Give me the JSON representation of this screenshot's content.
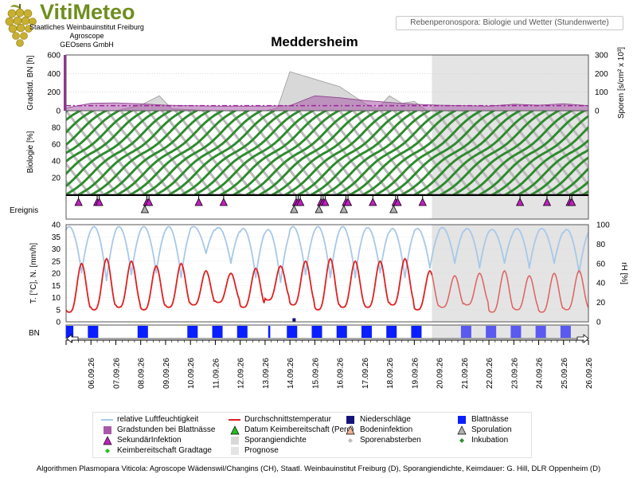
{
  "branding": {
    "title": "VitiMeteo",
    "org_lines": [
      "Staatliches Weinbauinstitut Freiburg",
      "Agroscope",
      "GEOsens GmbH"
    ]
  },
  "header": {
    "subtitle": "Rebenperonospora: Biologie und Wetter (Stundenwerte)",
    "station": "Meddersheim"
  },
  "footer": "Algorithmen Plasmopara Viticola: Agroscope Wädenswil/Changins (CH), Staatl. Weinbauinstitut Freiburg (D), Sporangiendichte, Keimdauer: G. Hill, DLR Oppenheim (D)",
  "colors": {
    "humidity": "#a8c8e8",
    "temperature": "#e02020",
    "precipitation": "#14147a",
    "leaf_wetness": "#0a1fff",
    "incubation": "#2d8b2d",
    "spore_death": "#bcbcbc",
    "degree_hours": "#a85aa8",
    "prognosis_bg": "#e4e4e4",
    "infection": "#c020c0"
  },
  "chart_data": {
    "x_dates": [
      "06.09.26",
      "07.09.26",
      "08.09.26",
      "09.09.26",
      "10.09.26",
      "11.09.26",
      "12.09.26",
      "13.09.26",
      "14.09.26",
      "15.09.26",
      "16.09.26",
      "17.09.26",
      "18.09.26",
      "19.09.26",
      "20.09.26",
      "21.09.26",
      "22.09.26",
      "23.09.26",
      "24.09.26",
      "25.09.26",
      "26.09.26"
    ],
    "x_range": [
      "05.09.26",
      "26.09.26"
    ],
    "prognosis_start": "19.09.26 17:00",
    "panels": [
      {
        "id": "degree_hours",
        "type": "area",
        "ylabel_left": "Gradstd. BN [h]",
        "yticks_left": [
          0,
          200,
          400,
          600
        ],
        "ylim_left": [
          0,
          600
        ],
        "ylabel_right": "Sporen [s/cm² x 10³]",
        "yticks_right": [
          0,
          100,
          200,
          300
        ],
        "ylim_right": [
          0,
          300
        ],
        "series": [
          {
            "name": "Gradstunden bei Blattnässe",
            "type": "area",
            "x": [
              "05.09 00:00",
              "06.09 00:00",
              "07.09 00:00",
              "08.09 00:00",
              "09.09 00:00",
              "10.09 00:00",
              "11.09 00:00",
              "12.09 00:00",
              "13.09 00:00",
              "14.09 00:00",
              "15.09 00:00",
              "16.09 00:00",
              "17.09 00:00",
              "18.09 00:00",
              "19.09 00:00",
              "20.09 00:00",
              "21.09 00:00",
              "22.09 00:00",
              "23.09 00:00",
              "24.09 00:00",
              "25.09 00:00",
              "26.09 00:00"
            ],
            "y": [
              30,
              80,
              85,
              75,
              60,
              55,
              50,
              50,
              50,
              55,
              160,
              140,
              110,
              90,
              70,
              60,
              55,
              50,
              70,
              60,
              75,
              55
            ]
          },
          {
            "name": "Sporangiendichte",
            "type": "area",
            "x": [
              "05.09 00:00",
              "07.09 00:00",
              "08.09 00:00",
              "08.09 18:00",
              "09.09 06:00",
              "11.09 00:00",
              "12.09 00:00",
              "13.09 00:00",
              "13.09 12:00",
              "14.09 00:00",
              "16.09 00:00",
              "17.09 00:00",
              "17.09 12:00",
              "18.09 00:00",
              "18.09 12:00",
              "19.09 00:00",
              "19.09 12:00",
              "26.09 00:00"
            ],
            "y": [
              0,
              0,
              60,
              160,
              20,
              0,
              0,
              0,
              30,
              420,
              260,
              80,
              20,
              160,
              80,
              100,
              0,
              0
            ]
          },
          {
            "name": "Keimbereitschaft Gradtage",
            "type": "line",
            "x": [
              "05.09 00:00",
              "26.09 00:00"
            ],
            "y": [
              55,
              55
            ]
          }
        ]
      },
      {
        "id": "biology",
        "ylabel": "Biologie [%]",
        "yticks": [
          20,
          40,
          60,
          80
        ],
        "ylim": [
          0,
          100
        ],
        "series": [
          {
            "name": "Inkubation",
            "type": "scatter",
            "shape": "diagonal progressions from 0 to 100 % after each infection"
          },
          {
            "name": "Sporenabsterben",
            "type": "scatter",
            "shape": "diagonal progressions from 100 to 0 % after each sporulation"
          }
        ]
      },
      {
        "id": "events",
        "ylabel": "Ereignis",
        "series": [
          {
            "name": "SekundärInfektion",
            "x": [
              "05.09 12:00",
              "06.09 06:00",
              "06.09 08:00",
              "08.09 06:00",
              "08.09 08:00",
              "10.09 08:00",
              "11.09 08:00",
              "14.09 06:00",
              "14.09 08:00",
              "14.09 10:00",
              "15.09 06:00",
              "15.09 08:00",
              "15.09 10:00",
              "16.09 06:00",
              "16.09 08:00",
              "17.09 08:00",
              "18.09 06:00",
              "18.09 08:00",
              "19.09 08:00",
              "23.09 06:00",
              "24.09 08:00",
              "25.09 06:00",
              "25.09 08:00"
            ]
          },
          {
            "name": "Sporulation",
            "x": [
              "08.09 04:00",
              "14.09 04:00",
              "15.09 04:00",
              "16.09 04:00",
              "18.09 04:00"
            ]
          }
        ]
      },
      {
        "id": "weather",
        "ylabel_left": "T. [°C], N. [mm/h]",
        "yticks_left": [
          0,
          5,
          10,
          15,
          20,
          25,
          30,
          35,
          40
        ],
        "ylim_left": [
          0,
          40
        ],
        "ylabel_right": "rH [%]",
        "yticks_right": [
          0,
          20,
          40,
          60,
          80,
          100
        ],
        "ylim_right": [
          0,
          100
        ],
        "series": [
          {
            "name": "relative Luftfeuchtigkeit",
            "type": "line",
            "axis": "right",
            "daily_min": [
              50,
              42,
              48,
              50,
              45,
              70,
              60,
              45,
              40,
              48,
              45,
              45,
              50,
              45,
              55,
              60,
              55,
              60,
              55,
              60,
              50
            ],
            "daily_max": [
              98,
              98,
              98,
              98,
              98,
              98,
              97,
              96,
              95,
              98,
              98,
              98,
              97,
              96,
              96,
              97,
              96,
              95,
              96,
              96,
              95
            ]
          },
          {
            "name": "Durchschnittstemperatur",
            "type": "line",
            "axis": "left",
            "daily_min": [
              4,
              5,
              6,
              5,
              6,
              7,
              8,
              6,
              9,
              7,
              5,
              6,
              6,
              7,
              5,
              6,
              7,
              4,
              5,
              4,
              5
            ],
            "daily_max": [
              24,
              26,
              25,
              23,
              24,
              21,
              20,
              22,
              23,
              25,
              26,
              25,
              25,
              26,
              21,
              19,
              20,
              21,
              19,
              20,
              21
            ]
          },
          {
            "name": "Niederschläge",
            "type": "bar",
            "x": [
              "14.09 04:00"
            ],
            "y": [
              1.5
            ]
          }
        ]
      },
      {
        "id": "leaf_wetness",
        "ylabel": "BN",
        "series": [
          {
            "name": "Blattnässe",
            "type": "bar",
            "note": "nightly wet periods"
          }
        ]
      }
    ]
  },
  "legend": {
    "items": [
      {
        "key": "relh",
        "label": "relative Luftfeuchtigkeit"
      },
      {
        "key": "temp",
        "label": "Durchschnittstemperatur"
      },
      {
        "key": "prec",
        "label": "Niederschläge"
      },
      {
        "key": "bn",
        "label": "Blattnässe"
      },
      {
        "key": "gbn",
        "label": "Gradstunden bei Blattnässe"
      },
      {
        "key": "kpero",
        "label": "Datum Keimbereitschaft (Pero)"
      },
      {
        "key": "boden",
        "label": "Bodeninfektion"
      },
      {
        "key": "sporu",
        "label": "Sporulation"
      },
      {
        "key": "sek",
        "label": "SekundärInfektion"
      },
      {
        "key": "spd",
        "label": "Sporangiendichte"
      },
      {
        "key": "spab",
        "label": "Sporenabsterben"
      },
      {
        "key": "inku",
        "label": "Inkubation"
      },
      {
        "key": "kgt",
        "label": "Keimbereitschaft Gradtage"
      },
      {
        "key": "prog",
        "label": "Prognose"
      }
    ]
  }
}
